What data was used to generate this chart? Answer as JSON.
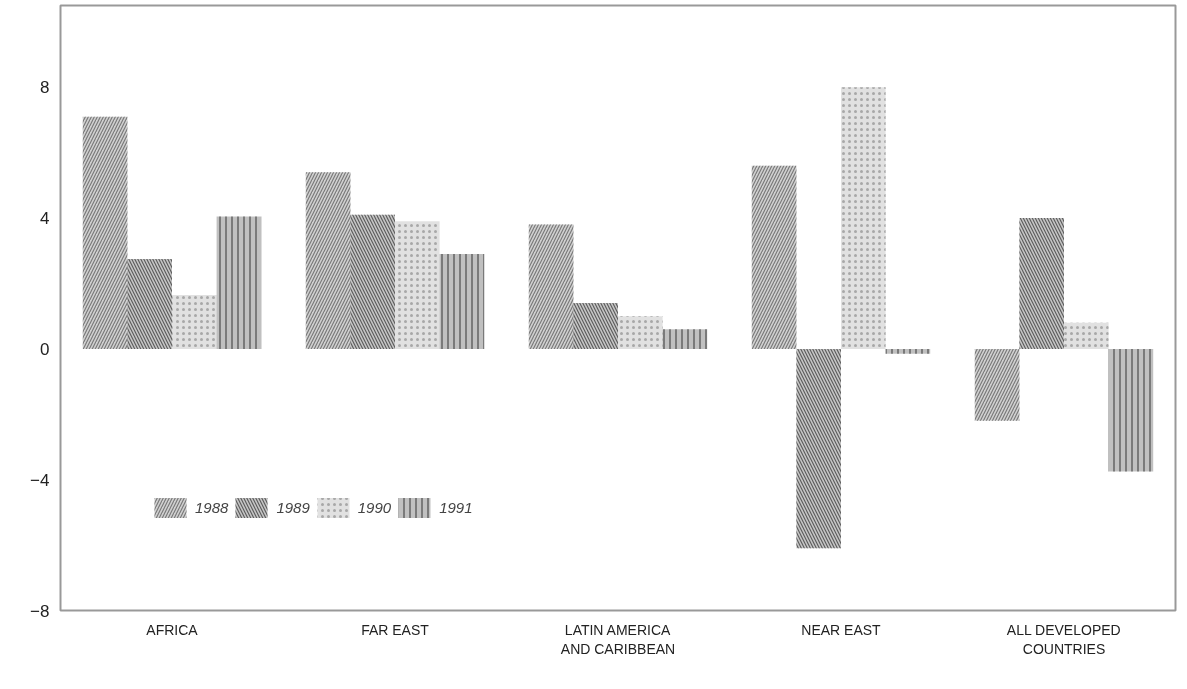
{
  "chart_data": {
    "type": "bar",
    "categories": [
      "AFRICA",
      "FAR EAST",
      "LATIN AMERICA\nAND CARIBBEAN",
      "NEAR EAST",
      "ALL DEVELOPED\nCOUNTRIES"
    ],
    "series": [
      {
        "name": "1988",
        "color": "#7a7a7a",
        "values": [
          7.1,
          5.4,
          3.8,
          5.6,
          -2.2
        ]
      },
      {
        "name": "1989",
        "color": "#5e5e5e",
        "values": [
          2.75,
          4.1,
          1.4,
          -6.1,
          4.0
        ]
      },
      {
        "name": "1990",
        "color": "#a8a8a8",
        "values": [
          1.65,
          3.9,
          1.0,
          8.0,
          0.8
        ]
      },
      {
        "name": "1991",
        "color": "#4a4a4a",
        "values": [
          4.05,
          2.9,
          0.6,
          -0.15,
          -3.75
        ]
      }
    ],
    "ylim": [
      -8,
      10.5
    ],
    "yticks": [
      -8,
      -4,
      0,
      4,
      8
    ],
    "grid": false,
    "legend": "bottom left"
  }
}
